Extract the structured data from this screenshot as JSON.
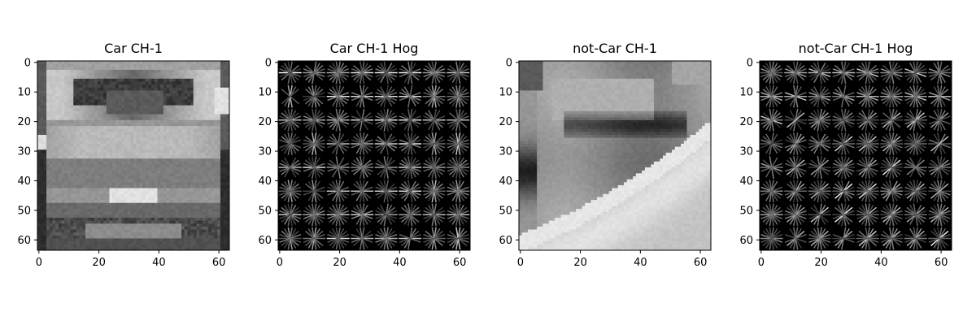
{
  "chart_data": [
    {
      "type": "heatmap",
      "title": "Car CH-1",
      "colormap": "gray",
      "content": "grayscale photo of a car rear (64x64)",
      "xlim": [
        0,
        63
      ],
      "ylim": [
        63,
        0
      ],
      "xticks": [
        0,
        20,
        40,
        60
      ],
      "yticks": [
        0,
        10,
        20,
        30,
        40,
        50,
        60
      ]
    },
    {
      "type": "heatmap",
      "title": "Car CH-1 Hog",
      "colormap": "gray",
      "content": "HOG visualization, 8x8 cells, mostly horizontal gradients",
      "xlim": [
        0,
        63
      ],
      "ylim": [
        63,
        0
      ],
      "xticks": [
        0,
        20,
        40,
        60
      ],
      "yticks": [
        0,
        10,
        20,
        30,
        40,
        50,
        60
      ]
    },
    {
      "type": "heatmap",
      "title": "not-Car CH-1",
      "colormap": "gray",
      "content": "grayscale road/background patch with diagonal bright edge (64x64)",
      "xlim": [
        0,
        63
      ],
      "ylim": [
        63,
        0
      ],
      "xticks": [
        0,
        20,
        40,
        60
      ],
      "yticks": [
        0,
        10,
        20,
        30,
        40,
        50,
        60
      ]
    },
    {
      "type": "heatmap",
      "title": "not-Car CH-1 Hog",
      "colormap": "gray",
      "content": "HOG visualization, 8x8 cells, diagonal gradients",
      "xlim": [
        0,
        63
      ],
      "ylim": [
        63,
        0
      ],
      "xticks": [
        0,
        20,
        40,
        60
      ],
      "yticks": [
        0,
        10,
        20,
        30,
        40,
        50,
        60
      ]
    }
  ]
}
